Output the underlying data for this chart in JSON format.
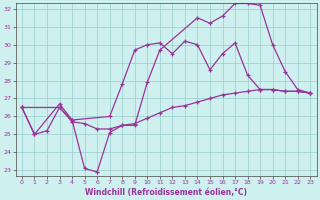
{
  "xlabel": "Windchill (Refroidissement éolien,°C)",
  "xlim": [
    0,
    23
  ],
  "ylim": [
    23,
    32
  ],
  "yticks": [
    23,
    24,
    25,
    26,
    27,
    28,
    29,
    30,
    31,
    32
  ],
  "xticks": [
    0,
    1,
    2,
    3,
    4,
    5,
    6,
    7,
    8,
    9,
    10,
    11,
    12,
    13,
    14,
    15,
    16,
    17,
    18,
    19,
    20,
    21,
    22,
    23
  ],
  "bg_color": "#cef0ef",
  "line_color": "#993399",
  "grid_color": "#99cccc",
  "line1": {
    "x": [
      0,
      1,
      3,
      4,
      5,
      6,
      7,
      8,
      9,
      10,
      11,
      14,
      15,
      16,
      17,
      18,
      19,
      20,
      21,
      22,
      23
    ],
    "y": [
      26.5,
      25.0,
      26.7,
      25.8,
      23.1,
      22.9,
      25.1,
      25.5,
      25.5,
      27.9,
      29.7,
      31.5,
      31.2,
      31.6,
      32.3,
      32.3,
      32.2,
      30.0,
      28.5,
      27.5,
      27.3
    ]
  },
  "line2": {
    "x": [
      0,
      3,
      4,
      7,
      8,
      9,
      10,
      11,
      12,
      13,
      14,
      15,
      16,
      17,
      18,
      19,
      20,
      21,
      22,
      23
    ],
    "y": [
      26.5,
      26.5,
      25.8,
      26.0,
      27.8,
      29.7,
      30.0,
      30.1,
      29.5,
      30.2,
      30.0,
      28.6,
      29.5,
      30.1,
      28.3,
      27.5,
      27.5,
      27.4,
      27.4,
      27.3
    ]
  },
  "line3": {
    "x": [
      0,
      1,
      2,
      3,
      4,
      5,
      6,
      7,
      8,
      9,
      10,
      11,
      12,
      13,
      14,
      15,
      16,
      17,
      18,
      19,
      20,
      21,
      22,
      23
    ],
    "y": [
      26.5,
      25.0,
      25.2,
      26.5,
      25.7,
      25.6,
      25.3,
      25.3,
      25.5,
      25.6,
      25.9,
      26.2,
      26.5,
      26.6,
      26.8,
      27.0,
      27.2,
      27.3,
      27.4,
      27.5,
      27.5,
      27.4,
      27.4,
      27.3
    ]
  }
}
